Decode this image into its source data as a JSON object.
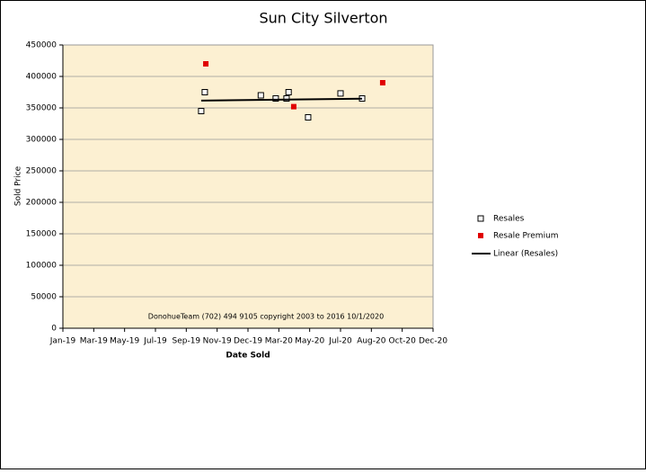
{
  "chart_data": {
    "type": "scatter",
    "title": "Sun City Silverton",
    "x_label": "Date Sold",
    "y_label": "Sold Price",
    "annotation": "DonohueTeam  (702) 494 9105 copyright  2003 to 2016  10/1/2020",
    "xlim": [
      43466,
      44186
    ],
    "xticks": [
      {
        "value": 43466,
        "label": "Jan-19"
      },
      {
        "value": 43526,
        "label": "Mar-19"
      },
      {
        "value": 43586,
        "label": "May-19"
      },
      {
        "value": 43646,
        "label": "Jul-19"
      },
      {
        "value": 43706,
        "label": "Sep-19"
      },
      {
        "value": 43766,
        "label": "Nov-19"
      },
      {
        "value": 43826,
        "label": "Dec-19"
      },
      {
        "value": 43886,
        "label": "Mar-20"
      },
      {
        "value": 43946,
        "label": "May-20"
      },
      {
        "value": 44006,
        "label": "Jul-20"
      },
      {
        "value": 44066,
        "label": "Aug-20"
      },
      {
        "value": 44126,
        "label": "Oct-20"
      },
      {
        "value": 44186,
        "label": "Dec-20"
      }
    ],
    "ylim": [
      0,
      450000
    ],
    "yticks": [
      0,
      50000,
      100000,
      150000,
      200000,
      250000,
      300000,
      350000,
      400000,
      450000
    ],
    "grid": true,
    "series": [
      {
        "name": "Resales",
        "color": "#000000",
        "marker": "open-square",
        "x": [
          43735,
          43742,
          43851,
          43880,
          43901,
          43905,
          43943,
          44006,
          44048
        ],
        "values": [
          345000,
          375000,
          370000,
          365000,
          365000,
          375000,
          335000,
          373000,
          365000
        ]
      },
      {
        "name": "Resale Premium",
        "color": "#e00000",
        "marker": "filled-square",
        "x": [
          43744,
          43915,
          44088
        ],
        "values": [
          420000,
          352000,
          390000
        ]
      }
    ],
    "trendline": {
      "name": "Linear (Resales)",
      "color": "#000000"
    }
  }
}
